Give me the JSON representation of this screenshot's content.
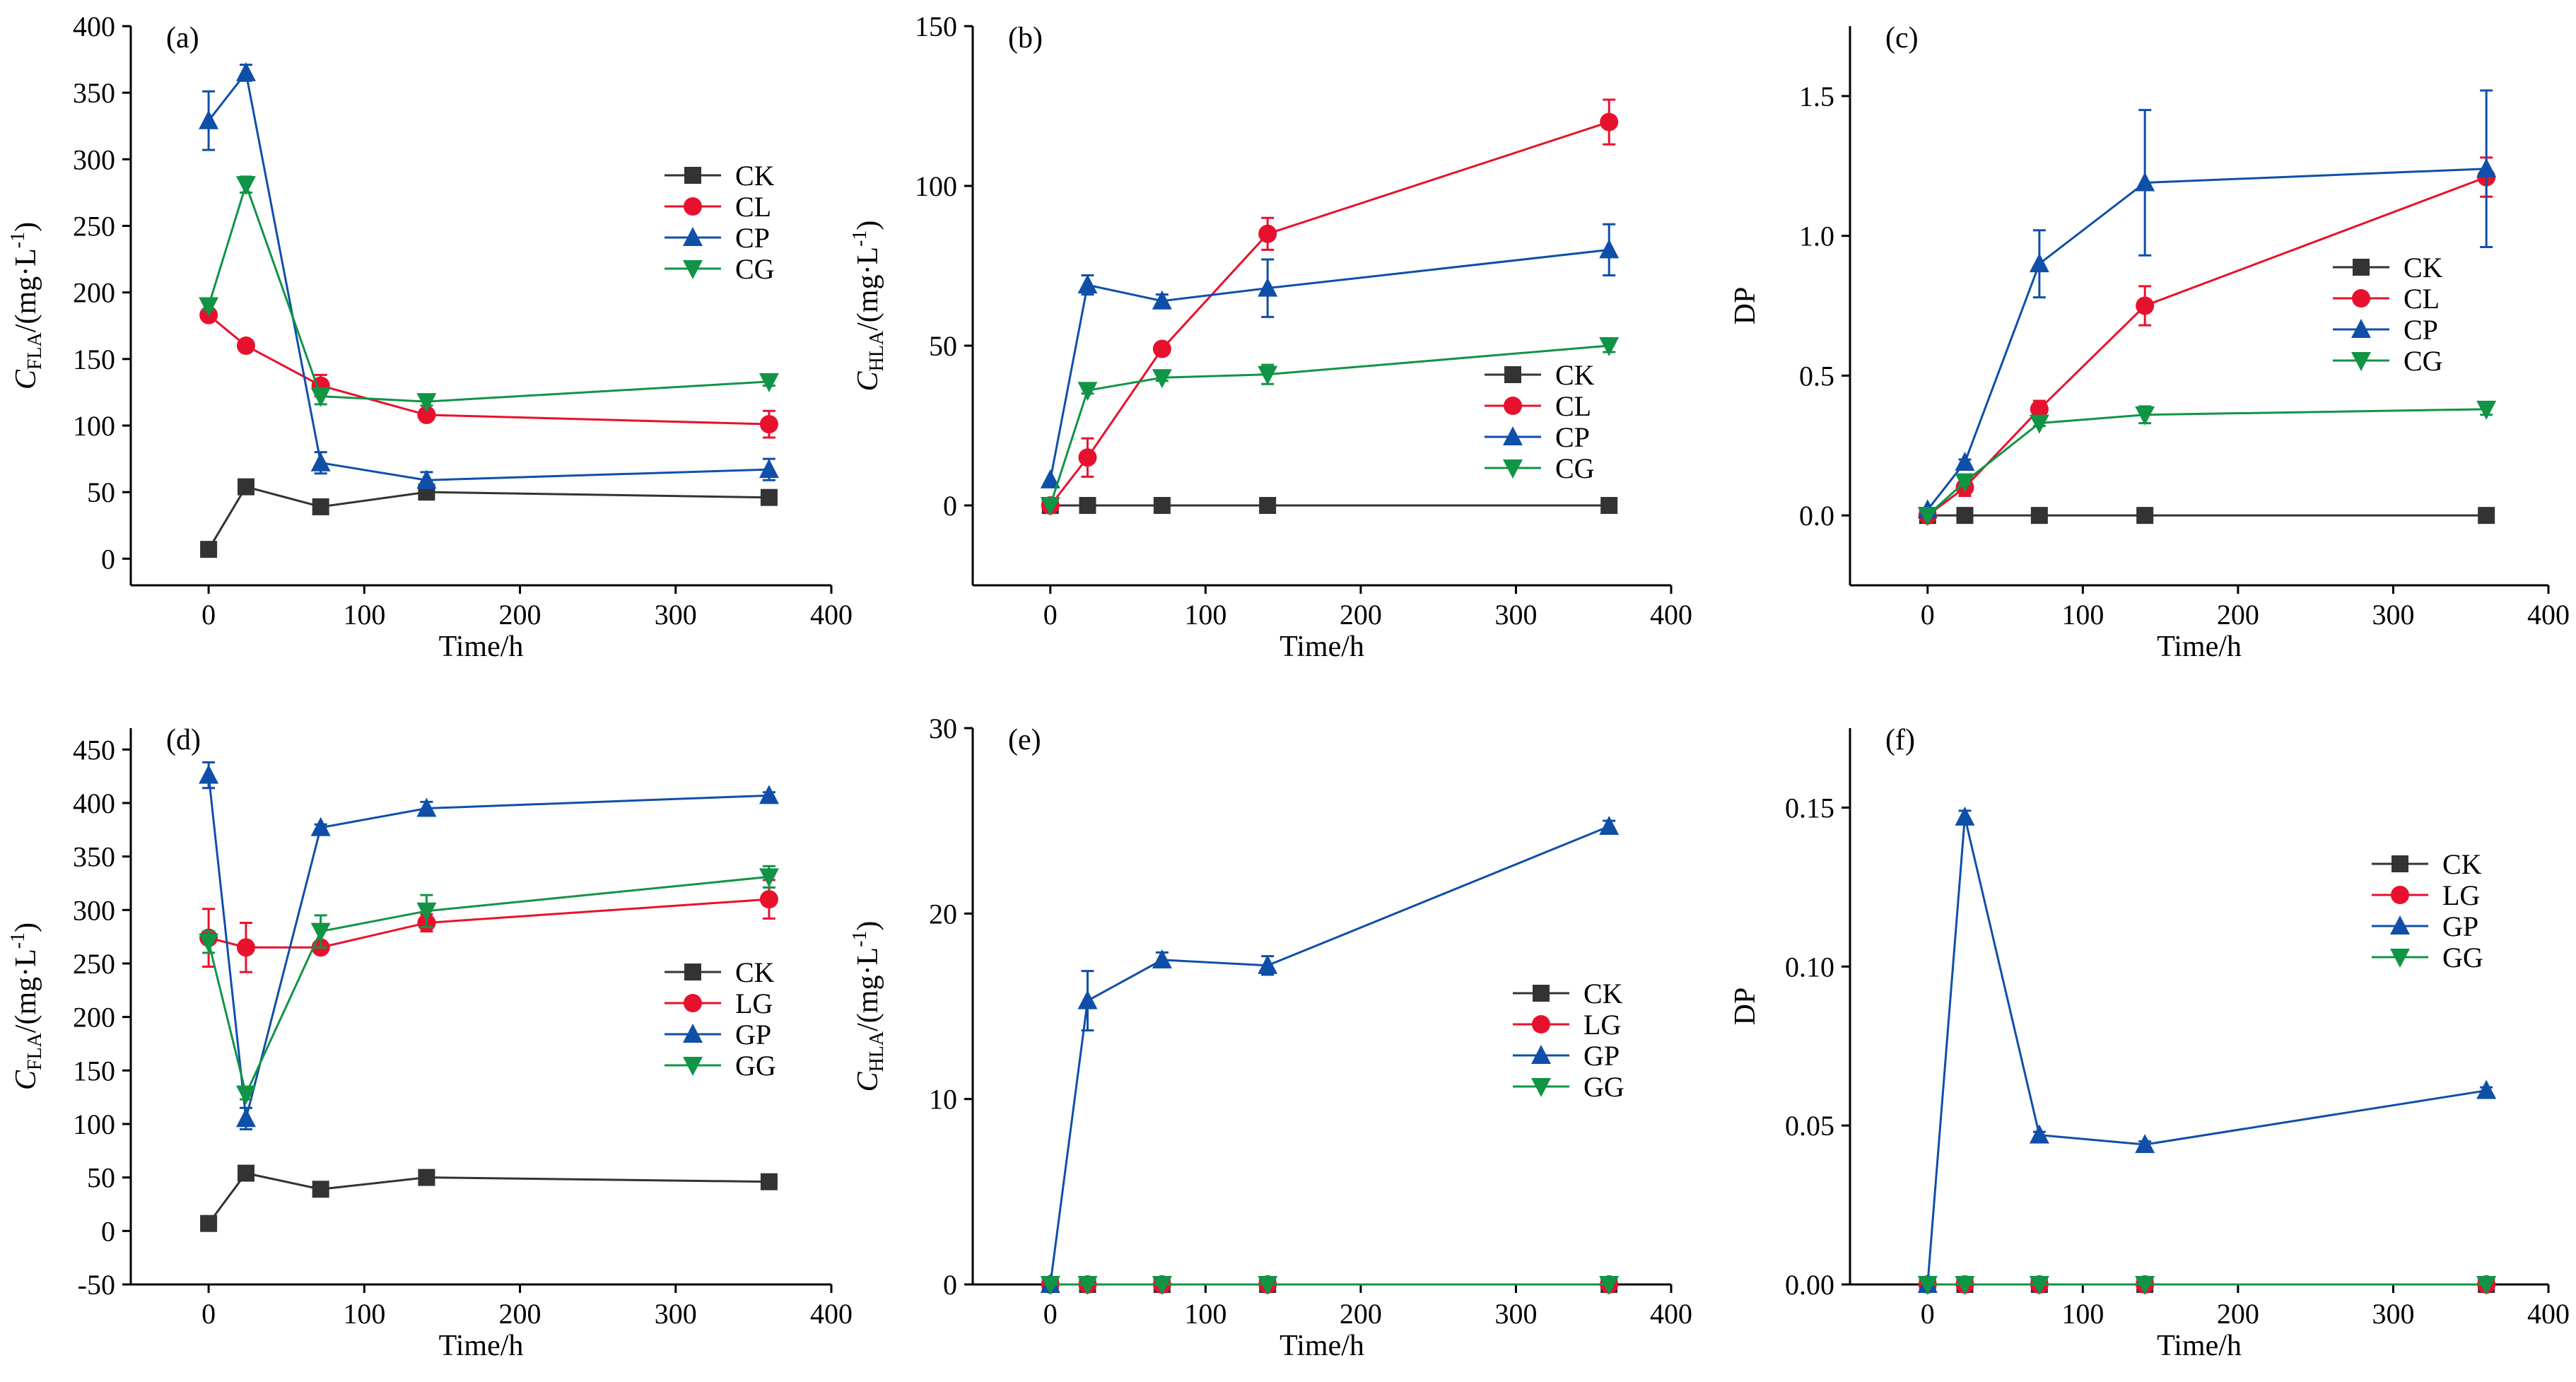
{
  "colors": {
    "CK": "#333333",
    "CL": "#e8112d",
    "LG": "#e8112d",
    "CP": "#0f4fa8",
    "GP": "#0f4fa8",
    "CG": "#109446",
    "GG": "#109446"
  },
  "markers": {
    "CK": "square",
    "CL": "circle",
    "LG": "circle",
    "CP": "triangle-up",
    "GP": "triangle-up",
    "CG": "triangle-down",
    "GG": "triangle-down"
  },
  "chart_data": [
    {
      "panel": "(a)",
      "type": "line",
      "ylabel_var": "C",
      "ylabel_sub": "FLA",
      "ylabel_unit": "/(mg·L",
      "ylabel_exp": "-1",
      "ylabel_close": ")",
      "xlabel": "Time/h",
      "xlim": [
        -50,
        400
      ],
      "ylim": [
        -20,
        400
      ],
      "xticks": [
        0,
        100,
        200,
        300,
        400
      ],
      "yticks": [
        0,
        50,
        100,
        150,
        200,
        250,
        300,
        350,
        400
      ],
      "legend_position": "right",
      "x": [
        0,
        24,
        72,
        140,
        360
      ],
      "series": [
        {
          "name": "CK",
          "values": [
            7,
            54,
            39,
            50,
            46
          ],
          "err": [
            0,
            0,
            0,
            0,
            0
          ]
        },
        {
          "name": "CL",
          "values": [
            183,
            160,
            130,
            108,
            101
          ],
          "err": [
            3,
            2,
            8,
            3,
            10
          ]
        },
        {
          "name": "CP",
          "values": [
            329,
            365,
            72,
            59,
            67
          ],
          "err": [
            22,
            6,
            8,
            6,
            8
          ]
        },
        {
          "name": "CG",
          "values": [
            190,
            281,
            122,
            118,
            133
          ],
          "err": [
            3,
            6,
            6,
            3,
            3
          ]
        }
      ]
    },
    {
      "panel": "(b)",
      "type": "line",
      "ylabel_var": "C",
      "ylabel_sub": "HLA",
      "ylabel_unit": "/(mg·L",
      "ylabel_exp": "-1",
      "ylabel_close": ")",
      "xlabel": "Time/h",
      "xlim": [
        -50,
        400
      ],
      "ylim": [
        -25,
        150
      ],
      "xticks": [
        0,
        100,
        200,
        300,
        400
      ],
      "yticks": [
        0,
        50,
        100,
        150
      ],
      "legend_position": "bottom-right",
      "x": [
        0,
        24,
        72,
        140,
        360
      ],
      "series": [
        {
          "name": "CK",
          "values": [
            0,
            0,
            0,
            0,
            0
          ],
          "err": [
            0,
            0,
            0,
            0,
            0
          ]
        },
        {
          "name": "CL",
          "values": [
            0,
            15,
            49,
            85,
            120
          ],
          "err": [
            0,
            6,
            1,
            5,
            7
          ]
        },
        {
          "name": "CP",
          "values": [
            8,
            69,
            64,
            68,
            80
          ],
          "err": [
            0,
            3,
            2,
            9,
            8
          ]
        },
        {
          "name": "CG",
          "values": [
            0,
            36,
            40,
            41,
            50
          ],
          "err": [
            0,
            1,
            1,
            3,
            2
          ]
        }
      ]
    },
    {
      "panel": "(c)",
      "type": "line",
      "ylabel": "DP",
      "xlabel": "Time/h",
      "xlim": [
        -50,
        400
      ],
      "ylim": [
        -0.25,
        1.75
      ],
      "xticks": [
        0,
        100,
        200,
        300,
        400
      ],
      "yticks": [
        0.0,
        0.5,
        1.0,
        1.5
      ],
      "ytick_labels": [
        "0.0",
        "0.5",
        "1.0",
        "1.5"
      ],
      "legend_position": "right",
      "x": [
        0,
        24,
        72,
        140,
        360
      ],
      "series": [
        {
          "name": "CK",
          "values": [
            0,
            0,
            0,
            0,
            0
          ],
          "err": [
            0,
            0,
            0,
            0,
            0
          ]
        },
        {
          "name": "CL",
          "values": [
            0,
            0.1,
            0.38,
            0.75,
            1.21
          ],
          "err": [
            0,
            0.03,
            0.03,
            0.07,
            0.07
          ]
        },
        {
          "name": "CP",
          "values": [
            0.02,
            0.19,
            0.9,
            1.19,
            1.24
          ],
          "err": [
            0,
            0.01,
            0.12,
            0.26,
            0.28
          ]
        },
        {
          "name": "CG",
          "values": [
            0,
            0.12,
            0.33,
            0.36,
            0.38
          ],
          "err": [
            0,
            0.01,
            0.01,
            0.03,
            0.02
          ]
        }
      ]
    },
    {
      "panel": "(d)",
      "type": "line",
      "ylabel_var": "C",
      "ylabel_sub": "FLA",
      "ylabel_unit": "/(mg·L",
      "ylabel_exp": "-1",
      "ylabel_close": ")",
      "xlabel": "Time/h",
      "xlim": [
        -50,
        400
      ],
      "ylim": [
        -50,
        470
      ],
      "xticks": [
        0,
        100,
        200,
        300,
        400
      ],
      "yticks": [
        -50,
        0,
        50,
        100,
        150,
        200,
        250,
        300,
        350,
        400,
        450
      ],
      "legend_position": "right",
      "x": [
        0,
        24,
        72,
        140,
        360
      ],
      "series": [
        {
          "name": "CK",
          "values": [
            7,
            54,
            39,
            50,
            46
          ],
          "err": [
            0,
            0,
            0,
            0,
            0
          ]
        },
        {
          "name": "LG",
          "values": [
            274,
            265,
            265,
            288,
            310
          ],
          "err": [
            27,
            23,
            3,
            8,
            18
          ]
        },
        {
          "name": "GP",
          "values": [
            426,
            105,
            377,
            395,
            407
          ],
          "err": [
            12,
            10,
            3,
            6,
            3
          ]
        },
        {
          "name": "GG",
          "values": [
            270,
            128,
            280,
            299,
            331
          ],
          "err": [
            10,
            5,
            15,
            15,
            10
          ]
        }
      ]
    },
    {
      "panel": "(e)",
      "type": "line",
      "ylabel_var": "C",
      "ylabel_sub": "HLA",
      "ylabel_unit": "/(mg·L",
      "ylabel_exp": "-1",
      "ylabel_close": ")",
      "xlabel": "Time/h",
      "xlim": [
        -50,
        400
      ],
      "ylim": [
        0,
        30
      ],
      "xticks": [
        0,
        100,
        200,
        300,
        400
      ],
      "yticks": [
        0,
        10,
        20,
        30
      ],
      "legend_position": "right",
      "x": [
        0,
        24,
        72,
        140,
        360
      ],
      "series": [
        {
          "name": "CK",
          "values": [
            0,
            0,
            0,
            0,
            0
          ],
          "err": [
            0,
            0,
            0,
            0,
            0
          ]
        },
        {
          "name": "LG",
          "values": [
            0,
            0,
            0,
            0,
            0
          ],
          "err": [
            0,
            0,
            0,
            0,
            0
          ]
        },
        {
          "name": "GP",
          "values": [
            0,
            15.3,
            17.5,
            17.2,
            24.7
          ],
          "err": [
            0,
            1.6,
            0.4,
            0.5,
            0.3
          ]
        },
        {
          "name": "GG",
          "values": [
            0,
            0,
            0,
            0,
            0
          ],
          "err": [
            0,
            0,
            0,
            0,
            0
          ]
        }
      ]
    },
    {
      "panel": "(f)",
      "type": "line",
      "ylabel": "DP",
      "xlabel": "Time/h",
      "xlim": [
        -50,
        400
      ],
      "ylim": [
        0,
        0.175
      ],
      "xticks": [
        0,
        100,
        200,
        300,
        400
      ],
      "yticks": [
        0.0,
        0.05,
        0.1,
        0.15
      ],
      "ytick_labels": [
        "0.00",
        "0.05",
        "0.10",
        "0.15"
      ],
      "legend_position": "top-right",
      "x": [
        0,
        24,
        72,
        140,
        360
      ],
      "series": [
        {
          "name": "CK",
          "values": [
            0,
            0,
            0,
            0,
            0
          ],
          "err": [
            0,
            0,
            0,
            0,
            0
          ]
        },
        {
          "name": "LG",
          "values": [
            0,
            0,
            0,
            0,
            0
          ],
          "err": [
            0,
            0,
            0,
            0,
            0
          ]
        },
        {
          "name": "GP",
          "values": [
            0,
            0.147,
            0.047,
            0.044,
            0.061
          ],
          "err": [
            0,
            0.002,
            0.001,
            0.001,
            0.001
          ]
        },
        {
          "name": "GG",
          "values": [
            0,
            0,
            0,
            0,
            0
          ],
          "err": [
            0,
            0,
            0,
            0,
            0
          ]
        }
      ]
    }
  ]
}
